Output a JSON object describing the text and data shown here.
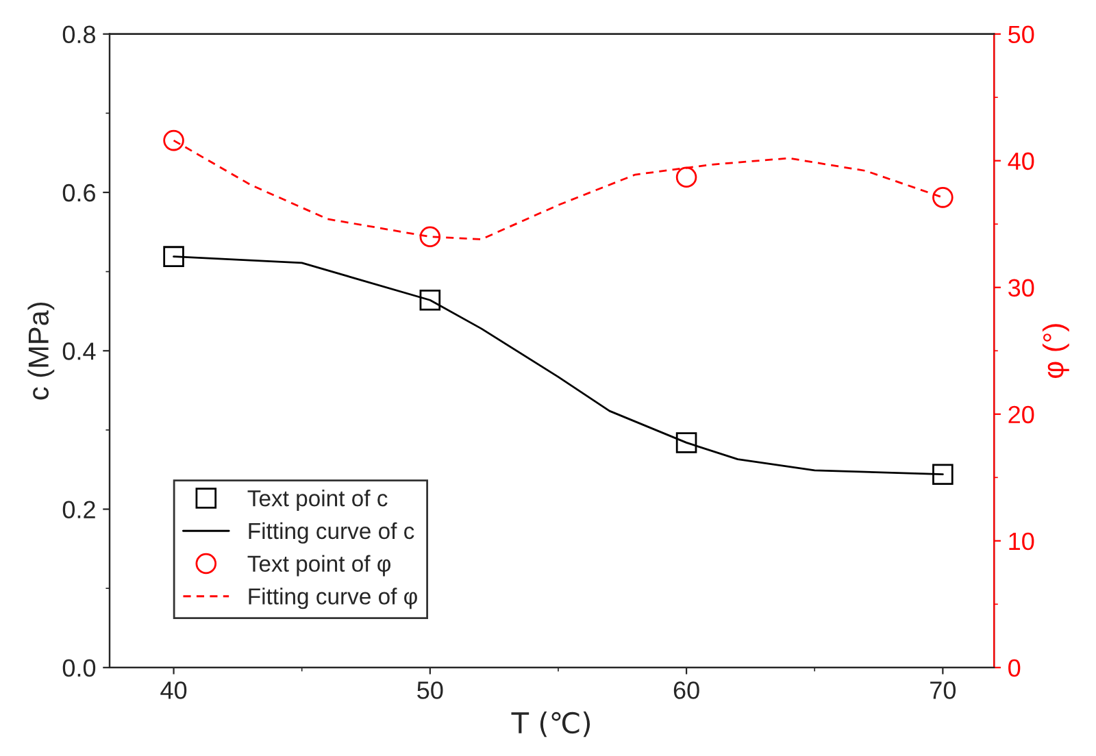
{
  "chart_data": {
    "type": "line",
    "xlabel": "T (℃)",
    "ylabel": "c (MPa)",
    "y2label": "φ (°)",
    "xlim": [
      37.5,
      72
    ],
    "xticks": [
      40,
      50,
      60,
      70
    ],
    "ylim": [
      0,
      0.8
    ],
    "yticks": [
      {
        "value": 0,
        "label": "0.0"
      },
      0.2,
      0.4,
      0.6,
      {
        "value": 0.8,
        "label": "0.8"
      }
    ],
    "y2lim": [
      0,
      50
    ],
    "y2ticks": [
      0,
      10,
      20,
      30,
      40,
      50
    ],
    "legend": "bottom left",
    "grid": false,
    "series": [
      {
        "name": "Text point of c",
        "type": "scatter",
        "marker": "square",
        "color": "#000000",
        "x": [
          40,
          50,
          60,
          70
        ],
        "values": [
          0.519,
          0.464,
          0.284,
          0.244
        ]
      },
      {
        "name": "Fitting curve of c",
        "line_style": "solid",
        "color": "#000000",
        "x": [
          40,
          45,
          50,
          52,
          55,
          57,
          60,
          62,
          65,
          70
        ],
        "values": [
          0.519,
          0.511,
          0.464,
          0.428,
          0.367,
          0.324,
          0.284,
          0.263,
          0.249,
          0.244
        ]
      },
      {
        "name": "Text point of φ",
        "type": "scatter",
        "marker": "circle",
        "axis": "y2",
        "color": "#ff0000",
        "x": [
          40,
          50,
          60,
          70
        ],
        "values": [
          41.6,
          34.0,
          38.7,
          37.1
        ]
      },
      {
        "name": "Fitting curve of φ",
        "line_style": "dashed",
        "axis": "y2",
        "color": "#ff0000",
        "x": [
          40,
          43,
          46,
          50,
          52,
          55,
          58,
          61,
          64,
          67,
          70
        ],
        "values": [
          41.6,
          38.1,
          35.4,
          34.0,
          33.8,
          36.5,
          38.9,
          39.7,
          40.2,
          39.2,
          37.1
        ]
      }
    ]
  }
}
